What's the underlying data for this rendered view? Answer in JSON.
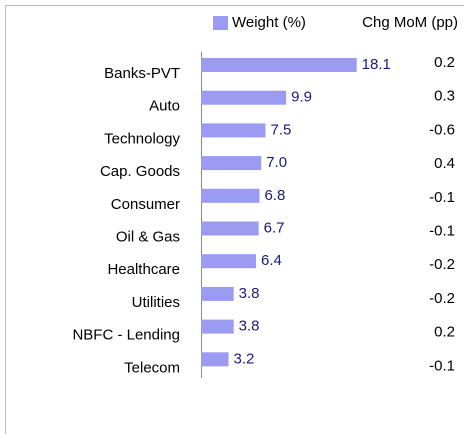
{
  "chart_data": {
    "type": "bar",
    "orientation": "horizontal",
    "categories": [
      "Banks-PVT",
      "Auto",
      "Technology",
      "Cap. Goods",
      "Consumer",
      "Oil & Gas",
      "Healthcare",
      "Utilities",
      "NBFC - Lending",
      "Telecom"
    ],
    "series": [
      {
        "name": "Weight (%)",
        "color": "#9b9bf2",
        "values": [
          18.1,
          9.9,
          7.5,
          7,
          6.8,
          6.7,
          6.4,
          3.8,
          3.8,
          3.2
        ],
        "value_labels": [
          "18.1",
          "9.9",
          "7.5",
          "7.0",
          "6.8",
          "6.7",
          "6.4",
          "3.8",
          "3.8",
          "3.2"
        ]
      }
    ],
    "chg_mom": {
      "title": "Chg MoM (pp)",
      "values": [
        0.2,
        0.3,
        -0.6,
        0.4,
        -0.1,
        -0.1,
        -0.2,
        -0.2,
        0.2,
        -0.1
      ]
    },
    "xlim": [
      0,
      20
    ],
    "legend": "top"
  }
}
